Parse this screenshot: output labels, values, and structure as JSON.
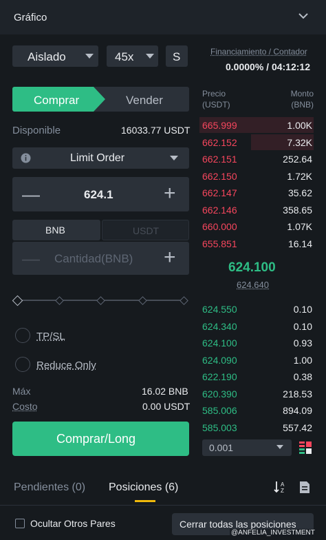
{
  "header": {
    "title": "Gráfico",
    "chevron_icon": "chevron-down-icon"
  },
  "margin_mode": {
    "value": "Aislado"
  },
  "leverage": {
    "value": "45x"
  },
  "asset_mode_button": {
    "label": "S"
  },
  "funding": {
    "label": "Financiamiento / Contador",
    "value": "0.0000% / 04:12:12"
  },
  "trade_tabs": {
    "buy": "Comprar",
    "sell": "Vender"
  },
  "available": {
    "label": "Disponible",
    "value": "16033.77 USDT"
  },
  "order_type": {
    "value": "Limit Order"
  },
  "price": {
    "value": "624.1",
    "minus": "—",
    "plus": "+"
  },
  "unit_toggle": {
    "left": "BNB",
    "right": "USDT"
  },
  "quantity": {
    "placeholder": "Cantidad(BNB)",
    "minus": "—",
    "plus": "+"
  },
  "options": {
    "tpsl": "TP/SL",
    "reduce_only": "Reduce Only"
  },
  "max": {
    "label": "Máx",
    "value": "16.02 BNB"
  },
  "cost": {
    "label": "Costo",
    "value": "0.00 USDT"
  },
  "cta": {
    "label": "Comprar/Long"
  },
  "orderbook": {
    "price_header": "Precio\n(USDT)",
    "amount_header": "Monto\n(BNB)",
    "price_header_l1": "Precio",
    "price_header_l2": "(USDT)",
    "amount_header_l1": "Monto",
    "amount_header_l2": "(BNB)",
    "asks": [
      {
        "price": "665.999",
        "amount": "1.00K",
        "depth": 1.0
      },
      {
        "price": "662.152",
        "amount": "7.32K",
        "depth": 0.55
      },
      {
        "price": "662.151",
        "amount": "252.64",
        "depth": 0.0
      },
      {
        "price": "662.150",
        "amount": "1.72K",
        "depth": 0.0
      },
      {
        "price": "662.147",
        "amount": "35.62",
        "depth": 0.0
      },
      {
        "price": "662.146",
        "amount": "358.65",
        "depth": 0.0
      },
      {
        "price": "660.000",
        "amount": "1.07K",
        "depth": 0.0
      },
      {
        "price": "655.851",
        "amount": "16.14",
        "depth": 0.0
      }
    ],
    "last_price": "624.100",
    "mark_price": "624.640",
    "bids": [
      {
        "price": "624.550",
        "amount": "0.10"
      },
      {
        "price": "624.340",
        "amount": "0.10"
      },
      {
        "price": "624.100",
        "amount": "0.93"
      },
      {
        "price": "624.090",
        "amount": "1.00"
      },
      {
        "price": "622.190",
        "amount": "0.38"
      },
      {
        "price": "620.390",
        "amount": "218.53"
      },
      {
        "price": "585.006",
        "amount": "894.09"
      },
      {
        "price": "585.003",
        "amount": "557.42"
      }
    ],
    "precision": "0.001"
  },
  "bottom_tabs": {
    "pending": "Pendientes (0)",
    "positions": "Posiciones (6)"
  },
  "hide_pairs": {
    "label": "Ocultar Otros Pares"
  },
  "close_all": {
    "label": "Cerrar todas las posiciones"
  },
  "watermark": "@ANFELIA_INVESTMENT",
  "colors": {
    "bg": "#161a1e",
    "panel": "#2b3139",
    "green": "#2ebd85",
    "red": "#f6465d",
    "muted": "#848e9c",
    "accent": "#f0b90b"
  }
}
